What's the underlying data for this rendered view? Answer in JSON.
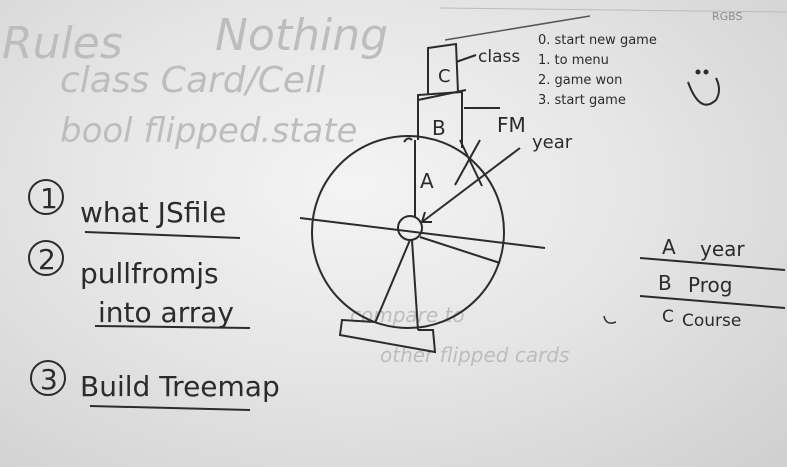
{
  "ghost_text": {
    "rules": "Rules",
    "nothing": "Nothing",
    "class_card": "class Card/Cell",
    "bool_line": "bool flipped.state",
    "compare": "compare to",
    "other_flipped": "other flipped cards"
  },
  "list_items": [
    {
      "num": "1",
      "text": "what JSfile"
    },
    {
      "num": "2",
      "text": "pullfromjs"
    },
    {
      "num": "",
      "text": "into array"
    },
    {
      "num": "3",
      "text": "Build Treemap"
    }
  ],
  "diagram_labels": {
    "class": "class",
    "fm": "FM",
    "year": "year",
    "seg_c": "C",
    "seg_b": "B",
    "seg_a": "A"
  },
  "game_states": [
    "0. start new game",
    "1. to menu",
    "2. game won",
    "3. start game"
  ],
  "legend": [
    {
      "key": "A",
      "label": "year"
    },
    {
      "key": "B",
      "label": "Prog"
    },
    {
      "key": "C",
      "label": "Course"
    }
  ],
  "corner_scribble": "RGBS"
}
